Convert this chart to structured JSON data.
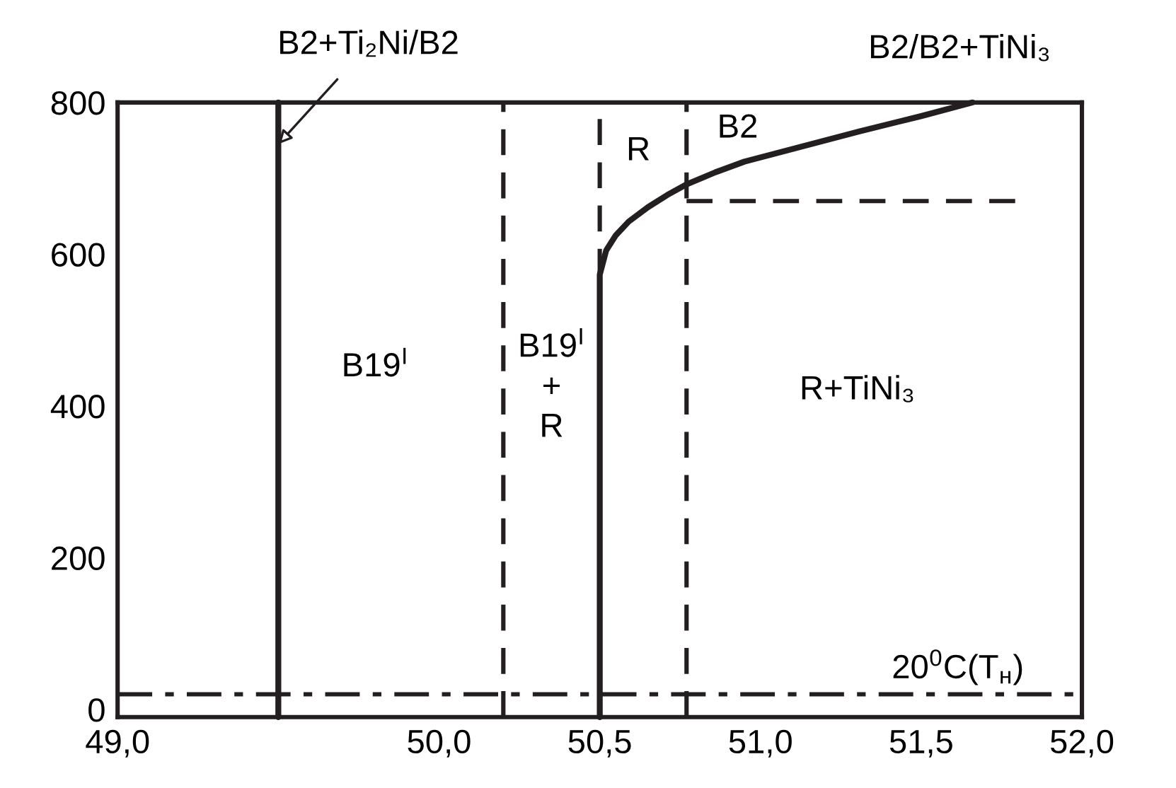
{
  "chart_data": {
    "type": "line",
    "xlim": [
      49.0,
      52.0
    ],
    "ylim": [
      -10,
      800
    ],
    "xticks": [
      {
        "value": 49.0,
        "label": "49,0"
      },
      {
        "value": 50.0,
        "label": "50,0"
      },
      {
        "value": 50.5,
        "label": "50,5"
      },
      {
        "value": 51.0,
        "label": "51,0"
      },
      {
        "value": 51.5,
        "label": "51,5"
      },
      {
        "value": 52.0,
        "label": "52,0"
      }
    ],
    "yticks": [
      0,
      200,
      400,
      600,
      800
    ],
    "grid": false,
    "series": [
      {
        "color": "#231f20",
        "line_style": "solid",
        "x": [
          49.5,
          49.5,
          49.5
        ],
        "values": [
          -10,
          745,
          800
        ]
      },
      {
        "color": "#231f20",
        "line_style": "solid",
        "x": [
          50.5,
          50.5,
          50.5,
          50.52,
          50.55,
          50.59,
          50.65,
          50.71,
          50.77,
          50.86,
          50.95,
          51.13,
          51.31,
          51.5,
          51.66
        ],
        "values": [
          -10,
          20,
          573,
          605,
          625,
          643,
          662,
          678,
          692,
          708,
          722,
          742,
          762,
          782,
          800
        ]
      },
      {
        "color": "#231f20",
        "line_style": "dashed",
        "x": [
          50.2,
          50.2
        ],
        "values": [
          -10,
          800
        ]
      },
      {
        "color": "#231f20",
        "line_style": "dashed",
        "x": [
          50.5,
          50.5
        ],
        "values": [
          573,
          800
        ]
      },
      {
        "color": "#231f20",
        "line_style": "dashed",
        "x": [
          50.77,
          50.77
        ],
        "values": [
          -10,
          800
        ]
      },
      {
        "color": "#231f20",
        "line_style": "dashed",
        "x": [
          50.77,
          51.8
        ],
        "values": [
          670,
          670
        ]
      }
    ],
    "ref_lines": [
      {
        "axis": "y",
        "value": 20,
        "label": "20$^{0}$C(T$_{н}$)",
        "line_style": "dashdot",
        "color": "#231f20"
      }
    ],
    "annotations": [
      {
        "text": "B2+Ti₂Ni/B2",
        "x": 49.5,
        "y": 745
      },
      "B2/B2+TiNi₃",
      "B19$^{I}$",
      "B19$^{I}$",
      "+",
      "R",
      "R",
      "B2",
      "R+TiNi₃"
    ]
  }
}
